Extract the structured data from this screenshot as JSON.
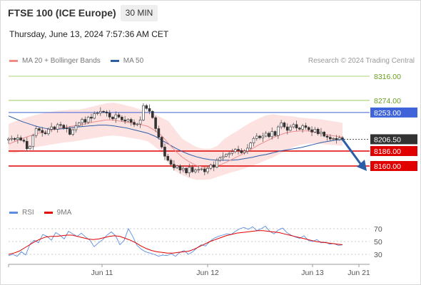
{
  "header": {
    "title": "FTSE 100 (ICE Europe)",
    "timeframe": "30 MIN",
    "datetime": "Thursday, June 13, 2024 7:57:36 AM CET"
  },
  "legend_main": [
    {
      "label": "MA 20 + Bollinger Bands",
      "color": "#f28b82"
    },
    {
      "label": "MA 50",
      "color": "#2c5ea8"
    }
  ],
  "legend_rsi": [
    {
      "label": "RSI",
      "color": "#5b8de0"
    },
    {
      "label": "9MA",
      "color": "#e00000"
    }
  ],
  "credit": "Research © 2024 Trading Central",
  "colors": {
    "bull_candle": "#2e7d32",
    "bear_candle": "#b71c1c",
    "bollinger_fill": "#fde2e2",
    "resistance": "#3f63d9",
    "support": "#e00000",
    "target": "#8bc34a",
    "current": "#333333",
    "forecast_arrow": "#2c5ea8"
  },
  "chart_data": [
    {
      "type": "candlestick",
      "title": "FTSE 100 (ICE Europe)",
      "timeframe": "30 MIN",
      "x_tick_labels": [
        "Jun 11",
        "Jun 12",
        "Jun 13",
        "Jun 21"
      ],
      "ylim": [
        8110,
        8330
      ],
      "price_levels": [
        {
          "value": 8316.0,
          "label": "8316.00",
          "kind": "target"
        },
        {
          "value": 8274.0,
          "label": "8274.00",
          "kind": "target"
        },
        {
          "value": 8253.0,
          "label": "8253.00",
          "kind": "resistance"
        },
        {
          "value": 8206.5,
          "label": "8206.50",
          "kind": "current"
        },
        {
          "value": 8186.0,
          "label": "8186.00",
          "kind": "support"
        },
        {
          "value": 8160.0,
          "label": "8160.00",
          "kind": "support"
        }
      ],
      "series": [
        {
          "name": "Close",
          "values": [
            8207,
            8208,
            8206,
            8209,
            8205,
            8203,
            8190,
            8194,
            8213,
            8225,
            8222,
            8218,
            8216,
            8224,
            8228,
            8224,
            8232,
            8231,
            8226,
            8225,
            8215,
            8223,
            8230,
            8235,
            8241,
            8236,
            8245,
            8243,
            8251,
            8252,
            8255,
            8254,
            8252,
            8245,
            8242,
            8249,
            8245,
            8240,
            8238,
            8241,
            8236,
            8232,
            8233,
            8240,
            8265,
            8260,
            8255,
            8244,
            8225,
            8210,
            8193,
            8177,
            8170,
            8163,
            8157,
            8160,
            8153,
            8156,
            8148,
            8158,
            8150,
            8153,
            8154,
            8155,
            8150,
            8156,
            8162,
            8158,
            8170,
            8174,
            8177,
            8180,
            8182,
            8185,
            8189,
            8187,
            8183,
            8186,
            8191,
            8200,
            8208,
            8212,
            8209,
            8212,
            8217,
            8211,
            8220,
            8213,
            8228,
            8235,
            8228,
            8222,
            8228,
            8232,
            8226,
            8224,
            8230,
            8227,
            8223,
            8219,
            8224,
            8216,
            8219,
            8212,
            8210,
            8207,
            8208,
            8206,
            8209,
            8206.5
          ]
        },
        {
          "name": "MA 20",
          "values": [
            8198,
            8203,
            8208,
            8212,
            8216,
            8219,
            8222,
            8225,
            8227,
            8229,
            8231,
            8233,
            8236,
            8238,
            8240,
            8240,
            8238,
            8236,
            8234,
            8232,
            8229,
            8222,
            8213,
            8199,
            8186,
            8175,
            8167,
            8161,
            8158,
            8157,
            8160,
            8165,
            8171,
            8177,
            8183,
            8190,
            8197,
            8203,
            8209,
            8214,
            8218,
            8220,
            8221,
            8221,
            8219,
            8217,
            8214,
            8212,
            8210
          ]
        },
        {
          "name": "Bollinger Upper",
          "values": [
            8233,
            8238,
            8242,
            8246,
            8249,
            8252,
            8254,
            8256,
            8257,
            8258,
            8258,
            8260,
            8263,
            8266,
            8269,
            8270,
            8268,
            8265,
            8262,
            8258,
            8255,
            8250,
            8244,
            8238,
            8222,
            8207,
            8200,
            8193,
            8190,
            8190,
            8195,
            8207,
            8215,
            8222,
            8230,
            8237,
            8243,
            8248,
            8250,
            8248,
            8247,
            8246,
            8244,
            8243,
            8242,
            8241,
            8239,
            8237,
            8235
          ]
        },
        {
          "name": "Bollinger Lower",
          "values": [
            8183,
            8182,
            8186,
            8190,
            8193,
            8195,
            8197,
            8199,
            8201,
            8202,
            8204,
            8206,
            8208,
            8210,
            8212,
            8213,
            8212,
            8210,
            8208,
            8206,
            8203,
            8194,
            8183,
            8164,
            8151,
            8144,
            8139,
            8136,
            8136,
            8137,
            8141,
            8145,
            8149,
            8152,
            8156,
            8160,
            8165,
            8170,
            8175,
            8181,
            8188,
            8193,
            8197,
            8199,
            8199,
            8198,
            8197,
            8196,
            8195
          ]
        },
        {
          "name": "MA 50",
          "values": [
            8247,
            8242,
            8237,
            8233,
            8229,
            8226,
            8224,
            8224,
            8225,
            8227,
            8228,
            8229,
            8230,
            8231,
            8231,
            8230,
            8228,
            8226,
            8223,
            8220,
            8217,
            8212,
            8205,
            8198,
            8191,
            8185,
            8180,
            8176,
            8173,
            8171,
            8170,
            8170,
            8170,
            8171,
            8173,
            8175,
            8178,
            8180,
            8183,
            8186,
            8188,
            8190,
            8192,
            8195,
            8198,
            8201,
            8203,
            8205,
            8206
          ]
        }
      ],
      "forecast_arrow": {
        "from": 8206.5,
        "to": 8160,
        "label_from": "Jun 13",
        "direction": "down"
      }
    },
    {
      "type": "line",
      "title": "RSI",
      "y_tick_labels": [
        "70",
        "50",
        "30"
      ],
      "ylim": [
        20,
        80
      ],
      "series": [
        {
          "name": "RSI",
          "values": [
            28,
            30,
            27,
            34,
            29,
            46,
            52,
            48,
            61,
            58,
            52,
            64,
            60,
            54,
            66,
            62,
            58,
            63,
            57,
            52,
            42,
            48,
            53,
            60,
            65,
            59,
            45,
            52,
            70,
            58,
            44,
            38,
            34,
            32,
            30,
            27,
            29,
            28,
            31,
            27,
            33,
            36,
            30,
            34,
            40,
            45,
            43,
            50,
            55,
            58,
            60,
            62,
            61,
            66,
            70,
            72,
            69,
            73,
            67,
            70,
            74,
            66,
            62,
            68,
            71,
            64,
            60,
            57,
            55,
            59,
            52,
            50,
            53,
            48,
            49,
            46,
            47,
            44,
            45
          ]
        },
        {
          "name": "9MA",
          "values": [
            30,
            32,
            35,
            40,
            45,
            50,
            54,
            57,
            58,
            58,
            59,
            60,
            60,
            58,
            56,
            54,
            53,
            54,
            56,
            58,
            59,
            58,
            55,
            52,
            48,
            43,
            39,
            36,
            34,
            33,
            32,
            32,
            33,
            34,
            35,
            38,
            42,
            46,
            50,
            53,
            56,
            59,
            61,
            63,
            64,
            65,
            66,
            67,
            67,
            66,
            65,
            64,
            62,
            60,
            58,
            56,
            54,
            52,
            50,
            49,
            48,
            47,
            46,
            45
          ]
        }
      ]
    }
  ]
}
